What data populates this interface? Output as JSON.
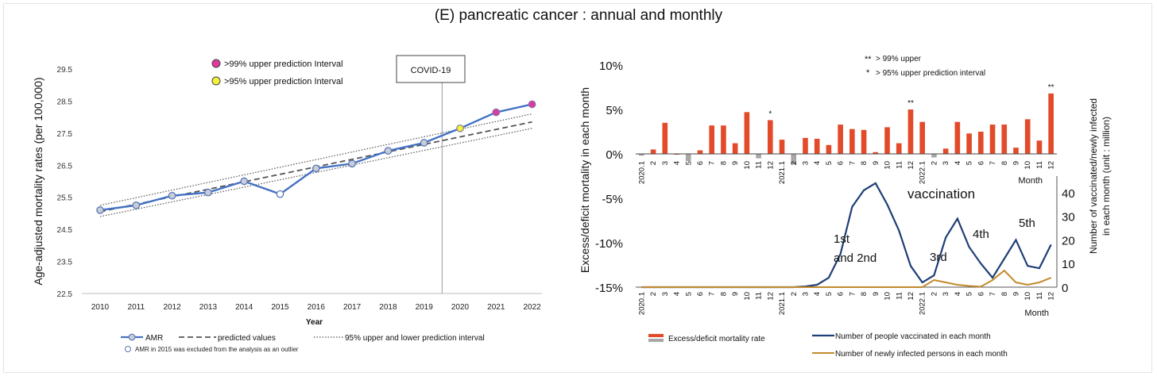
{
  "title": "(E) pancreatic cancer : annual and monthly",
  "chart_data": [
    {
      "type": "line",
      "ylabel": "Age-adjusted mortality rates (per 100,000)",
      "xlabel": "Year",
      "ylim": [
        22.5,
        29.5
      ],
      "yticks": [
        "22.5",
        "23.5",
        "24.5",
        "25.5",
        "26.5",
        "27.5",
        "28.5",
        "29.5"
      ],
      "x": [
        2010,
        2011,
        2012,
        2013,
        2014,
        2015,
        2016,
        2017,
        2018,
        2019,
        2020,
        2021,
        2022
      ],
      "series": [
        {
          "name": "AMR",
          "values": [
            25.1,
            25.25,
            25.55,
            25.65,
            26.0,
            25.6,
            26.4,
            26.55,
            26.95,
            27.2,
            27.65,
            28.15,
            28.4
          ],
          "color": "#4472c4"
        },
        {
          "name": "predicted values",
          "x": [
            2010,
            2022
          ],
          "values": [
            25.05,
            27.85
          ],
          "color": "#555555"
        },
        {
          "name": "95% upper and lower prediction interval",
          "x": [
            2010,
            2022
          ],
          "upper": [
            25.25,
            28.1
          ],
          "lower": [
            24.9,
            27.65
          ],
          "color": "#555555"
        }
      ],
      "marker_colors": {
        "outlier": "#ffffff",
        "p95": "#f5f23c",
        "p99": "#e0399e",
        "normal": "#c9cdd6"
      },
      "outlier_year": 2015,
      "p95_years": [
        2020
      ],
      "p99_years": [
        2021,
        2022
      ],
      "covid_year": 2019.5,
      "covid_label": "COVID-19",
      "legend_top": [
        {
          "label": ">99% upper prediction Interval",
          "color": "#e0399e"
        },
        {
          "label": ">95% upper prediction Interval",
          "color": "#f5f23c"
        }
      ],
      "legend_bottom": {
        "amr": "AMR",
        "predicted": "predicted values",
        "interval": "95% upper and lower prediction interval",
        "note": "AMR in 2015 was excluded from the analysis as an outlier"
      }
    },
    {
      "type": "bar",
      "ylabel": "Excess/deficit mortality in each month",
      "y2label_line1": "Number of vaccinated/newly infected",
      "y2label_line2": "in each month   (unit : million)",
      "ylim": [
        -15,
        10
      ],
      "yticks": [
        "10%",
        "5%",
        "0%",
        "-5%",
        "-10%",
        "-15%"
      ],
      "y2ticks": [
        "0",
        "10",
        "20",
        "30",
        "40"
      ],
      "y2lim": [
        0,
        47
      ],
      "month_labels": [
        "2020.1",
        "2",
        "3",
        "4",
        "5",
        "6",
        "7",
        "8",
        "9",
        "10",
        "11",
        "12",
        "2021.1",
        "2",
        "3",
        "4",
        "5",
        "6",
        "7",
        "8",
        "9",
        "10",
        "11",
        "12",
        "2022.1",
        "2",
        "3",
        "4",
        "5",
        "6",
        "7",
        "8",
        "9",
        "10",
        "11",
        "12"
      ],
      "month_axis_title": "Month",
      "excess_rate": [
        -0.2,
        0.5,
        3.5,
        0.0,
        -0.8,
        0.4,
        3.2,
        3.2,
        1.2,
        4.7,
        -0.5,
        3.8,
        1.6,
        -1.2,
        1.8,
        1.7,
        1.0,
        3.3,
        2.8,
        2.7,
        0.2,
        3.0,
        1.2,
        5.0,
        3.6,
        -0.4,
        0.6,
        3.6,
        2.3,
        2.5,
        3.3,
        3.3,
        0.7,
        3.9,
        1.5,
        6.8
      ],
      "bar_colors": {
        "positive": "#e34a2a",
        "negative": "#a7a7a7"
      },
      "stars": [
        {
          "month": 12,
          "mark": "*"
        },
        {
          "month": 24,
          "mark": "**"
        },
        {
          "month": 36,
          "mark": "**"
        }
      ],
      "star_legend": [
        {
          "mark": "**",
          "text": "> 99% upper"
        },
        {
          "mark": "*",
          "text": "> 95% upper prediction interval"
        }
      ],
      "vaccinated": [
        0,
        0,
        0,
        0,
        0,
        0,
        0,
        0,
        0,
        0,
        0,
        0,
        0,
        0,
        0.3,
        1,
        4,
        14,
        34,
        41,
        44,
        35,
        24,
        9,
        2,
        5,
        21,
        29,
        17,
        10,
        4,
        12,
        20,
        9,
        8,
        18
      ],
      "infected": [
        0,
        0,
        0,
        0,
        0,
        0,
        0,
        0,
        0,
        0,
        0,
        0,
        0,
        0,
        0,
        0,
        0,
        0,
        0,
        0,
        0,
        0,
        0,
        0,
        0,
        3,
        2,
        1,
        0.5,
        0.2,
        3,
        7,
        2,
        1,
        2,
        4
      ],
      "vacc_color": "#1f3f77",
      "inf_color": "#c28a2c",
      "annotations": {
        "vaccination": "vaccination",
        "first": "1st",
        "first2": "and 2nd",
        "third": "3rd",
        "fourth": "4th",
        "fifth": "5th"
      },
      "legend": {
        "bar": "Excess/deficit mortality rate",
        "vacc": "Number of people vaccinated in each month",
        "inf": "Number of newly infected persons in each month"
      }
    }
  ]
}
